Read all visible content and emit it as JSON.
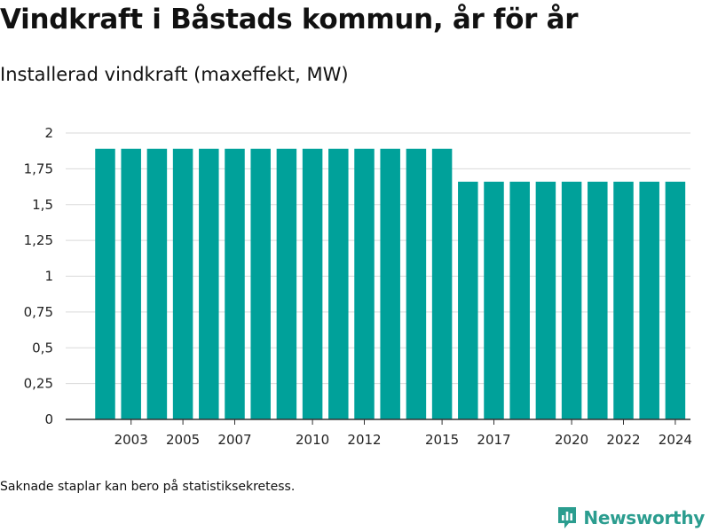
{
  "title": "Vindkraft i Båstads kommun, år för år",
  "subtitle": "Installerad vindkraft (maxeffekt, MW)",
  "footnote": "Saknade staplar kan bero på statistiksekretess.",
  "brand": {
    "name": "Newsworthy",
    "icon": "newsworthy-logo-icon",
    "color": "#2b9d8f"
  },
  "colors": {
    "bar": "#00a19a",
    "grid": "#d9d9d9",
    "axis": "#333333"
  },
  "chart_data": {
    "type": "bar",
    "categories": [
      "2002",
      "2003",
      "2004",
      "2005",
      "2006",
      "2007",
      "2008",
      "2009",
      "2010",
      "2011",
      "2012",
      "2013",
      "2014",
      "2015",
      "2016",
      "2017",
      "2018",
      "2019",
      "2020",
      "2021",
      "2022",
      "2023",
      "2024"
    ],
    "values": [
      1.89,
      1.89,
      1.89,
      1.89,
      1.89,
      1.89,
      1.89,
      1.89,
      1.89,
      1.89,
      1.89,
      1.89,
      1.89,
      1.89,
      1.66,
      1.66,
      1.66,
      1.66,
      1.66,
      1.66,
      1.66,
      1.66,
      1.66
    ],
    "x_tick_labels": [
      "2003",
      "2005",
      "2007",
      "2010",
      "2012",
      "2015",
      "2017",
      "2020",
      "2022",
      "2024"
    ],
    "y_ticks": [
      0,
      0.25,
      0.5,
      0.75,
      1,
      1.25,
      1.5,
      1.75,
      2
    ],
    "y_tick_labels": [
      "0",
      "0,25",
      "0,5",
      "0,75",
      "1",
      "1,25",
      "1,5",
      "1,75",
      "2"
    ],
    "ylim": [
      0,
      2
    ],
    "grid": true,
    "xlabel": "",
    "ylabel": ""
  }
}
